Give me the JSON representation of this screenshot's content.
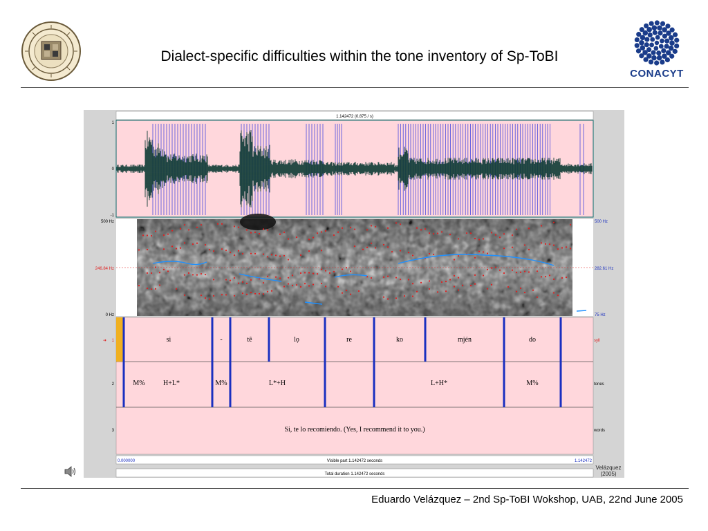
{
  "slide": {
    "title": "Dialect-specific difficulties within the tone inventory of Sp-ToBI",
    "footer": "Eduardo Velázquez – 2nd Sp-ToBI Wokshop, UAB, 22nd June 2005",
    "left_logo_icon": "university-seal-icon",
    "right_logo_icon": "conacyt-logo-icon",
    "right_logo_text": "CONACYT",
    "speaker_icon": "speaker-icon"
  },
  "praat": {
    "top_time": "1.142472 (0.875 / s)",
    "wave_axis": {
      "top": "1",
      "mid": "0",
      "bottom": "-1"
    },
    "spectrogram": {
      "left_top": "500 Hz",
      "left_mid": "246.84 Hz",
      "left_bottom": "0 Hz",
      "right_top": "500 Hz",
      "right_mid": "282.61 Hz",
      "right_bottom": "75 Hz"
    },
    "tiers": [
      {
        "number": "1",
        "name": "syll",
        "labels": [
          "si",
          "-",
          "tê",
          "lọ",
          "re",
          "ko",
          "mjén",
          "do"
        ]
      },
      {
        "number": "2",
        "name": "tones",
        "labels": [
          "M%",
          "H+L*",
          "M%",
          "L*+H",
          "L+H*",
          "M%"
        ]
      },
      {
        "number": "3",
        "name": "words",
        "labels": [
          "Si, te lo recomiendo. (Yes, I recommend it to you.)"
        ]
      }
    ],
    "bottom": {
      "start": "0.000000",
      "visible": "Visible part 1.142472 seconds",
      "end": "1.142472",
      "total": "Total duration 1.142472 seconds"
    },
    "credit_line1": "Velázquez",
    "credit_line2": "(2005)",
    "colors": {
      "tier_bg": "#ffd7dc",
      "boundary": "#1a2fc0",
      "pitch": "#1e90ff",
      "formant": "#e02020",
      "cursor": "#f0b020"
    }
  }
}
